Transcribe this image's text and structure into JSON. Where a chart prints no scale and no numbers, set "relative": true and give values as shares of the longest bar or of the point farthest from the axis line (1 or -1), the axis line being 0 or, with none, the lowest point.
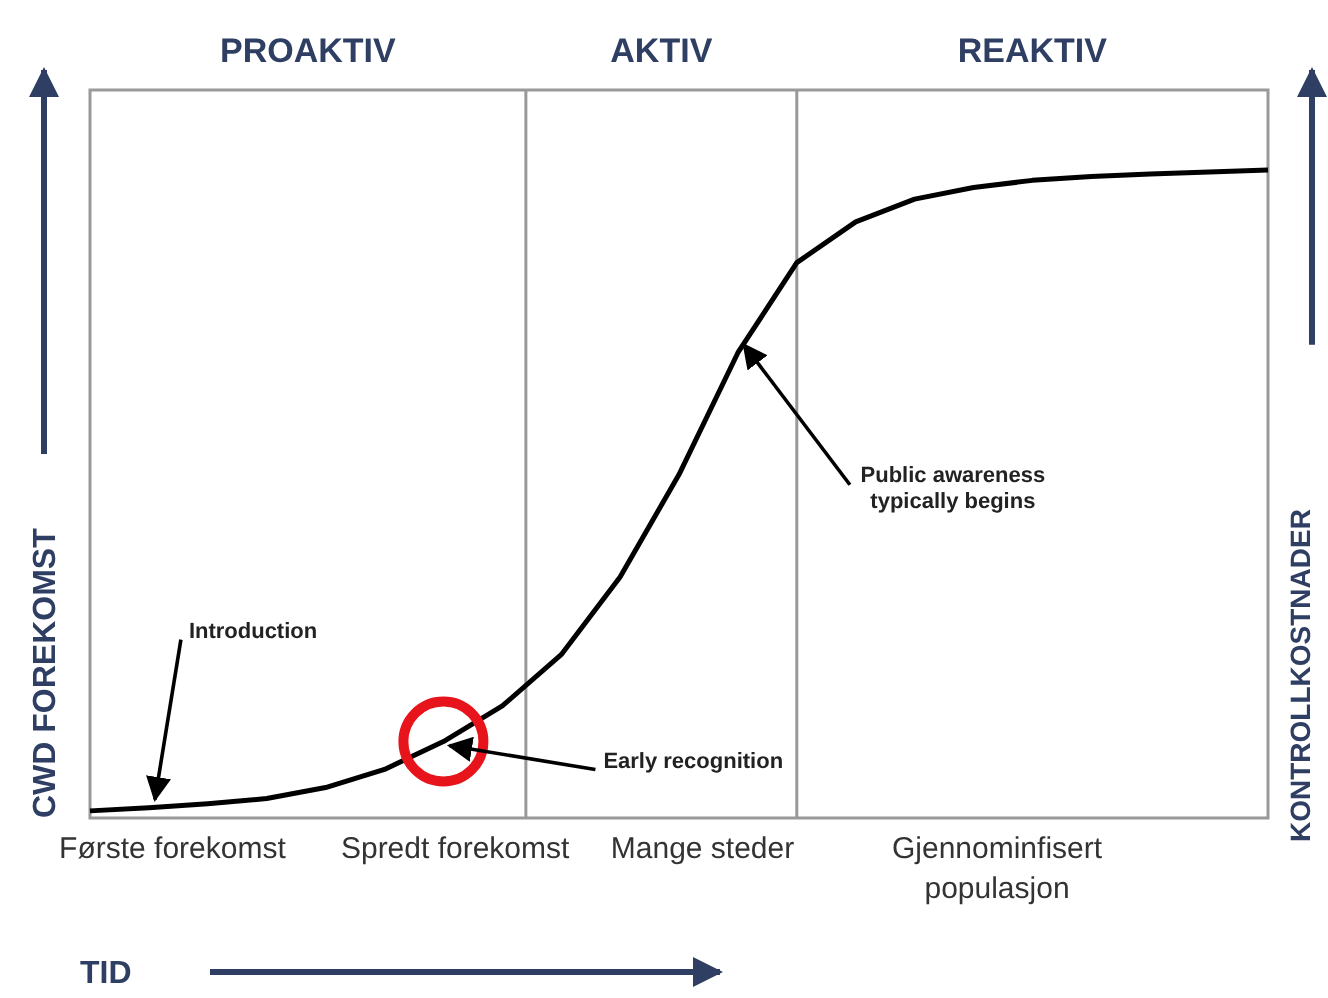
{
  "chart_data": {
    "type": "line",
    "relative": true,
    "xlabel": "TID",
    "ylabel": "CWD FOREKOMST",
    "y2label": "KONTROLLKOSTNADER",
    "tick_labels": false,
    "marker": "none",
    "categories": [
      null,
      null,
      null,
      null,
      null,
      null,
      null,
      null,
      null,
      null,
      null,
      null,
      null,
      null,
      null,
      null,
      null,
      null,
      null,
      null,
      null
    ],
    "series": [
      {
        "color": "#000000",
        "values": [
          0.011,
          0.016,
          0.022,
          0.03,
          0.047,
          0.075,
          0.118,
          0.173,
          0.252,
          0.372,
          0.53,
          0.718,
          0.857,
          0.92,
          0.955,
          0.973,
          0.984,
          0.99,
          0.994,
          0.997,
          1
        ]
      }
    ],
    "annotations": [
      "PROAKTIV",
      "AKTIV",
      "REAKTIV",
      "Introduction",
      "Early recognition",
      "Public awareness typically begins",
      "Første forekomst",
      "Spredt forekomst",
      "Mange steder",
      "Gjennominfisert populasjon"
    ]
  }
}
